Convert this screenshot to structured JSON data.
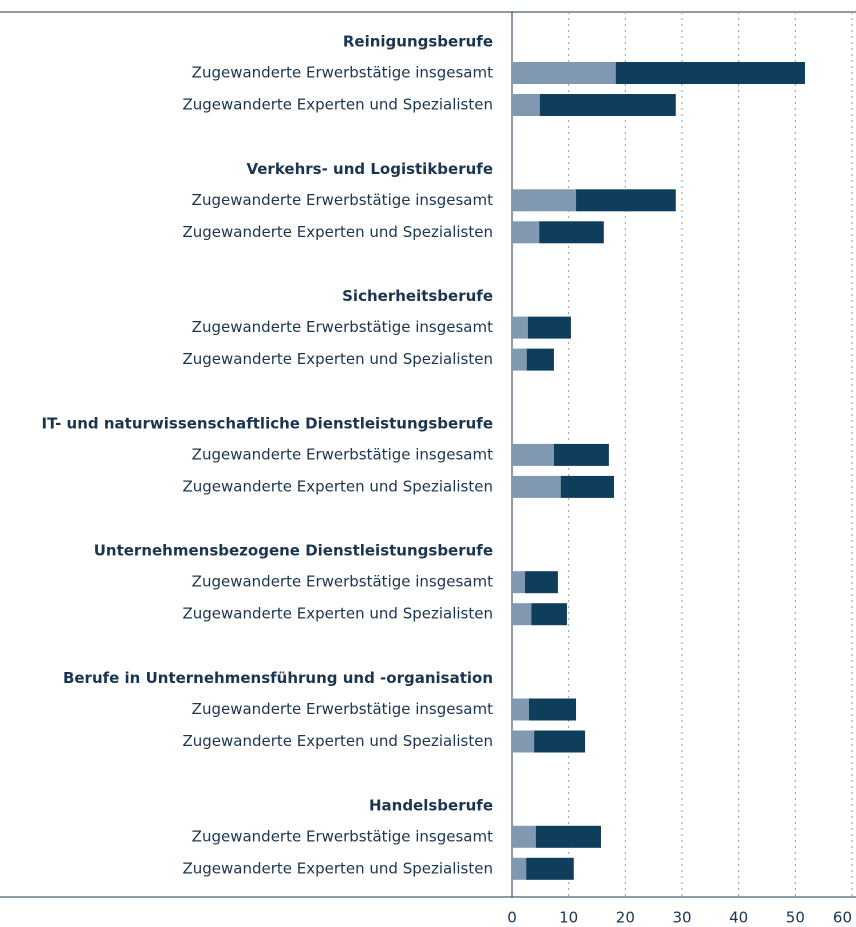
{
  "chart_data": {
    "type": "stacked-bar-horizontal",
    "groups": [
      "Reinigungsberufe",
      "Verkehrs- und Logistikberufe",
      "Sicherheitsberufe",
      "IT- und naturwissenschaftliche Dienstleistungsberufe",
      "Unternehmensbezogene Dienstleistungsberufe",
      "Berufe in Unternehmensführung und -organisation",
      "Handelsberufe"
    ],
    "categories": [
      "Zugewanderte Erwerbstätige insgesamt",
      "Zugewanderte Experten und Spezialisten",
      "Zugewanderte Erwerbstätige insgesamt",
      "Zugewanderte Experten und Spezialisten",
      "Zugewanderte Erwerbstätige insgesamt",
      "Zugewanderte Experten und Spezialisten",
      "Zugewanderte Erwerbstätige insgesamt",
      "Zugewanderte Experten und Spezialisten",
      "Zugewanderte Erwerbstätige insgesamt",
      "Zugewanderte Experten und Spezialisten",
      "Zugewanderte Erwerbstätige insgesamt",
      "Zugewanderte Experten und Spezialisten",
      "Zugewanderte Erwerbstätige insgesamt",
      "Zugewanderte Experten und Spezialisten"
    ],
    "series": [
      {
        "color": "#8099b0",
        "values": [
          18.3,
          4.9,
          11.3,
          4.8,
          2.8,
          2.6,
          7.4,
          8.6,
          2.3,
          3.4,
          3.0,
          3.9,
          4.2,
          2.5
        ]
      },
      {
        "color": "#0f3d5c",
        "values": [
          33.4,
          24.0,
          17.6,
          11.4,
          7.6,
          4.8,
          9.7,
          9.4,
          5.8,
          6.3,
          8.3,
          9.0,
          11.5,
          8.4
        ]
      }
    ],
    "xlim": [
      0,
      60
    ],
    "xticks": [
      0,
      10,
      20,
      30,
      40,
      50,
      60
    ],
    "grid": true
  }
}
